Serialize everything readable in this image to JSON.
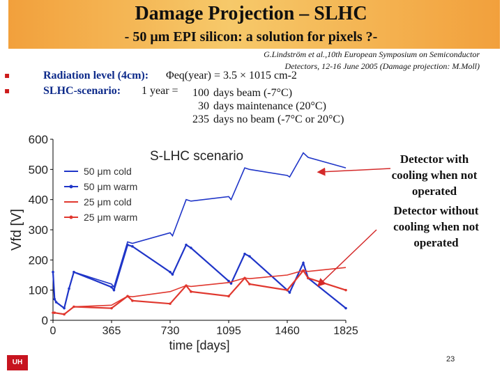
{
  "slide": {
    "title": "Damage Projection – SLHC",
    "subtitle": "- 50 μm EPI silicon: a solution for pixels ?-",
    "reference_line1": "G.Lindström et al.,10th European Symposium on Semiconductor",
    "reference_line2": "Detectors, 12-16 June 2005 (Damage projection: M.Moll)",
    "page_number": "23",
    "logo_text": "UH"
  },
  "bullets": {
    "radiation_label": "Radiation level (4cm):",
    "radiation_text": "Φeq(year) = 3.5 × 1015 cm-2",
    "scenario_label": "SLHC-scenario:",
    "scenario_prefix": "1 year =",
    "scenario_rows": [
      {
        "num": "100",
        "text": "days beam (-7°C)"
      },
      {
        "num": "30",
        "text": "days maintenance (20°C)"
      },
      {
        "num": "235",
        "text": "days no beam (-7°C or 20°C)"
      }
    ]
  },
  "annotations": {
    "with_cooling": "Detector with cooling when not operated",
    "without_cooling": "Detector without cooling when not operated"
  },
  "chart_data": {
    "type": "line",
    "title": "S-LHC scenario",
    "xlabel": "time [days]",
    "ylabel": "Vfd [V]",
    "xlim": [
      0,
      1825
    ],
    "ylim": [
      0,
      600
    ],
    "xticks": [
      0,
      365,
      730,
      1095,
      1460,
      1825
    ],
    "yticks": [
      0,
      100,
      200,
      300,
      400,
      500,
      600
    ],
    "legend_position": "top-left",
    "series": [
      {
        "name": "50 μm cold",
        "color": "#1f35c8",
        "marker": "none",
        "x": [
          0,
          10,
          20,
          70,
          100,
          130,
          365,
          380,
          465,
          495,
          730,
          745,
          830,
          860,
          1095,
          1110,
          1195,
          1225,
          1460,
          1475,
          1560,
          1590,
          1825
        ],
        "y": [
          160,
          70,
          60,
          40,
          105,
          160,
          120,
          110,
          260,
          255,
          290,
          280,
          400,
          395,
          410,
          400,
          505,
          500,
          480,
          475,
          555,
          540,
          505
        ]
      },
      {
        "name": "50 μm warm",
        "color": "#1f35c8",
        "marker": "dot",
        "x": [
          0,
          10,
          20,
          70,
          100,
          130,
          365,
          380,
          465,
          495,
          730,
          745,
          830,
          860,
          1095,
          1110,
          1195,
          1225,
          1460,
          1475,
          1560,
          1590,
          1825
        ],
        "y": [
          160,
          70,
          60,
          40,
          105,
          160,
          110,
          100,
          250,
          245,
          160,
          152,
          250,
          240,
          130,
          122,
          220,
          212,
          100,
          92,
          190,
          140,
          40
        ]
      },
      {
        "name": "25 μm cold",
        "color": "#e0372e",
        "marker": "none",
        "x": [
          0,
          10,
          70,
          130,
          365,
          465,
          495,
          730,
          830,
          860,
          1095,
          1195,
          1225,
          1460,
          1560,
          1590,
          1825
        ],
        "y": [
          25,
          25,
          20,
          45,
          50,
          80,
          78,
          95,
          115,
          112,
          125,
          140,
          138,
          150,
          165,
          162,
          175
        ]
      },
      {
        "name": "25 μm warm",
        "color": "#e0372e",
        "marker": "dot",
        "x": [
          0,
          10,
          70,
          130,
          365,
          465,
          495,
          730,
          830,
          860,
          1095,
          1195,
          1225,
          1460,
          1560,
          1590,
          1825
        ],
        "y": [
          25,
          25,
          20,
          45,
          40,
          80,
          65,
          55,
          115,
          95,
          80,
          140,
          120,
          100,
          165,
          140,
          100
        ]
      }
    ],
    "annotation_arrows": [
      {
        "label": "Detector with cooling when not operated",
        "target_x": 1825,
        "target_y": 505
      },
      {
        "label": "Detector without cooling when not operated",
        "target_x": 1825,
        "target_y": 160
      }
    ]
  }
}
